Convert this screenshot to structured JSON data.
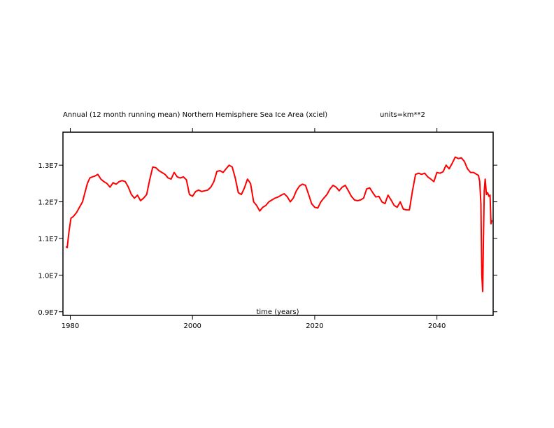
{
  "chart_data": {
    "type": "line",
    "title": "Annual (12 month running mean) Northern Hemisphere Sea Ice Area (xciel)",
    "units_label": "units=km**2",
    "xlabel": "time (years)",
    "ylabel": "",
    "xlim": [
      1978.8,
      2049.2
    ],
    "ylim": [
      8900000.0,
      13900000.0
    ],
    "x_ticks": [
      1980,
      2000,
      2020,
      2040
    ],
    "x_tick_labels": [
      "1980",
      "2000",
      "2020",
      "2040"
    ],
    "y_ticks": [
      9000000.0,
      10000000.0,
      11000000.0,
      12000000.0,
      13000000.0
    ],
    "y_tick_labels": [
      "0.9E7",
      "1.0E7",
      "1.1E7",
      "1.2E7",
      "1.3E7"
    ],
    "grid": false,
    "line_color": "#ff0000",
    "series": [
      {
        "name": "",
        "x": [
          1979.3,
          1979.5,
          1979.8,
          1980.1,
          1980.5,
          1981.0,
          1981.5,
          1982.0,
          1982.4,
          1982.8,
          1983.2,
          1983.6,
          1984.0,
          1984.5,
          1985.0,
          1985.5,
          1986.0,
          1986.5,
          1987.0,
          1987.5,
          1988.0,
          1988.5,
          1989.0,
          1989.5,
          1990.0,
          1990.5,
          1991.0,
          1991.5,
          1992.0,
          1992.5,
          1993.0,
          1993.5,
          1994.0,
          1994.5,
          1995.0,
          1995.5,
          1996.0,
          1996.5,
          1997.0,
          1997.5,
          1998.0,
          1998.5,
          1999.0,
          1999.5,
          2000.0,
          2000.5,
          2001.0,
          2001.5,
          2002.0,
          2002.5,
          2003.0,
          2003.5,
          2004.0,
          2004.5,
          2005.0,
          2005.5,
          2006.0,
          2006.5,
          2007.0,
          2007.5,
          2008.0,
          2008.5,
          2009.0,
          2009.5,
          2010.0,
          2010.5,
          2011.0,
          2011.5,
          2012.0,
          2012.5,
          2013.0,
          2013.5,
          2014.0,
          2014.5,
          2015.0,
          2015.5,
          2016.0,
          2016.5,
          2017.0,
          2017.5,
          2018.0,
          2018.5,
          2019.0,
          2019.5,
          2020.0,
          2020.5,
          2021.0,
          2021.5,
          2022.0,
          2022.5,
          2023.0,
          2023.5,
          2024.0,
          2024.5,
          2025.0,
          2025.5,
          2026.0,
          2026.5,
          2027.0,
          2027.5,
          2028.0,
          2028.5,
          2029.0,
          2029.5,
          2030.0,
          2030.5,
          2031.0,
          2031.5,
          2032.0,
          2032.5,
          2033.0,
          2033.5,
          2034.0,
          2034.5,
          2035.0,
          2035.5,
          2036.0,
          2036.5,
          2037.0,
          2037.5,
          2038.0,
          2038.5,
          2039.0,
          2039.5,
          2040.0,
          2040.5,
          2041.0,
          2041.5,
          2042.0,
          2042.5,
          2043.0,
          2043.5,
          2044.0,
          2044.5,
          2045.0,
          2045.5,
          2046.0,
          2046.5,
          2046.8,
          2047.0,
          2047.2,
          2047.35,
          2047.5,
          2047.6,
          2047.75,
          2047.9,
          2048.1,
          2048.3,
          2048.5,
          2048.7,
          2048.85,
          2049.0
        ],
        "y": [
          10780000.0,
          10750000.0,
          11200000.0,
          11550000.0,
          11600000.0,
          11700000.0,
          11850000.0,
          12000000.0,
          12250000.0,
          12500000.0,
          12650000.0,
          12680000.0,
          12700000.0,
          12750000.0,
          12620000.0,
          12550000.0,
          12500000.0,
          12400000.0,
          12520000.0,
          12480000.0,
          12550000.0,
          12580000.0,
          12550000.0,
          12400000.0,
          12200000.0,
          12100000.0,
          12180000.0,
          12030000.0,
          12100000.0,
          12200000.0,
          12600000.0,
          12950000.0,
          12930000.0,
          12850000.0,
          12800000.0,
          12750000.0,
          12650000.0,
          12620000.0,
          12800000.0,
          12680000.0,
          12650000.0,
          12680000.0,
          12600000.0,
          12200000.0,
          12150000.0,
          12280000.0,
          12320000.0,
          12280000.0,
          12300000.0,
          12320000.0,
          12400000.0,
          12550000.0,
          12830000.0,
          12850000.0,
          12800000.0,
          12900000.0,
          13000000.0,
          12950000.0,
          12650000.0,
          12250000.0,
          12200000.0,
          12380000.0,
          12620000.0,
          12500000.0,
          12000000.0,
          11900000.0,
          11750000.0,
          11850000.0,
          11900000.0,
          12000000.0,
          12050000.0,
          12100000.0,
          12130000.0,
          12180000.0,
          12220000.0,
          12140000.0,
          12000000.0,
          12100000.0,
          12300000.0,
          12430000.0,
          12480000.0,
          12450000.0,
          12200000.0,
          11950000.0,
          11850000.0,
          11830000.0,
          12000000.0,
          12100000.0,
          12200000.0,
          12350000.0,
          12450000.0,
          12400000.0,
          12300000.0,
          12400000.0,
          12450000.0,
          12300000.0,
          12150000.0,
          12050000.0,
          12030000.0,
          12050000.0,
          12100000.0,
          12350000.0,
          12380000.0,
          12250000.0,
          12130000.0,
          12150000.0,
          12000000.0,
          11950000.0,
          12180000.0,
          12050000.0,
          11900000.0,
          11850000.0,
          12000000.0,
          11800000.0,
          11780000.0,
          11780000.0,
          12300000.0,
          12750000.0,
          12780000.0,
          12750000.0,
          12780000.0,
          12680000.0,
          12620000.0,
          12550000.0,
          12800000.0,
          12780000.0,
          12820000.0,
          13000000.0,
          12900000.0,
          13050000.0,
          13220000.0,
          13180000.0,
          13200000.0,
          13100000.0,
          12900000.0,
          12800000.0,
          12800000.0,
          12750000.0,
          12720000.0,
          12550000.0,
          11950000.0,
          10000000.0,
          9550000.0,
          10800000.0,
          12300000.0,
          12620000.0,
          12200000.0,
          12250000.0,
          12150000.0,
          12180000.0,
          11400000.0,
          11500000.0
        ]
      }
    ]
  }
}
